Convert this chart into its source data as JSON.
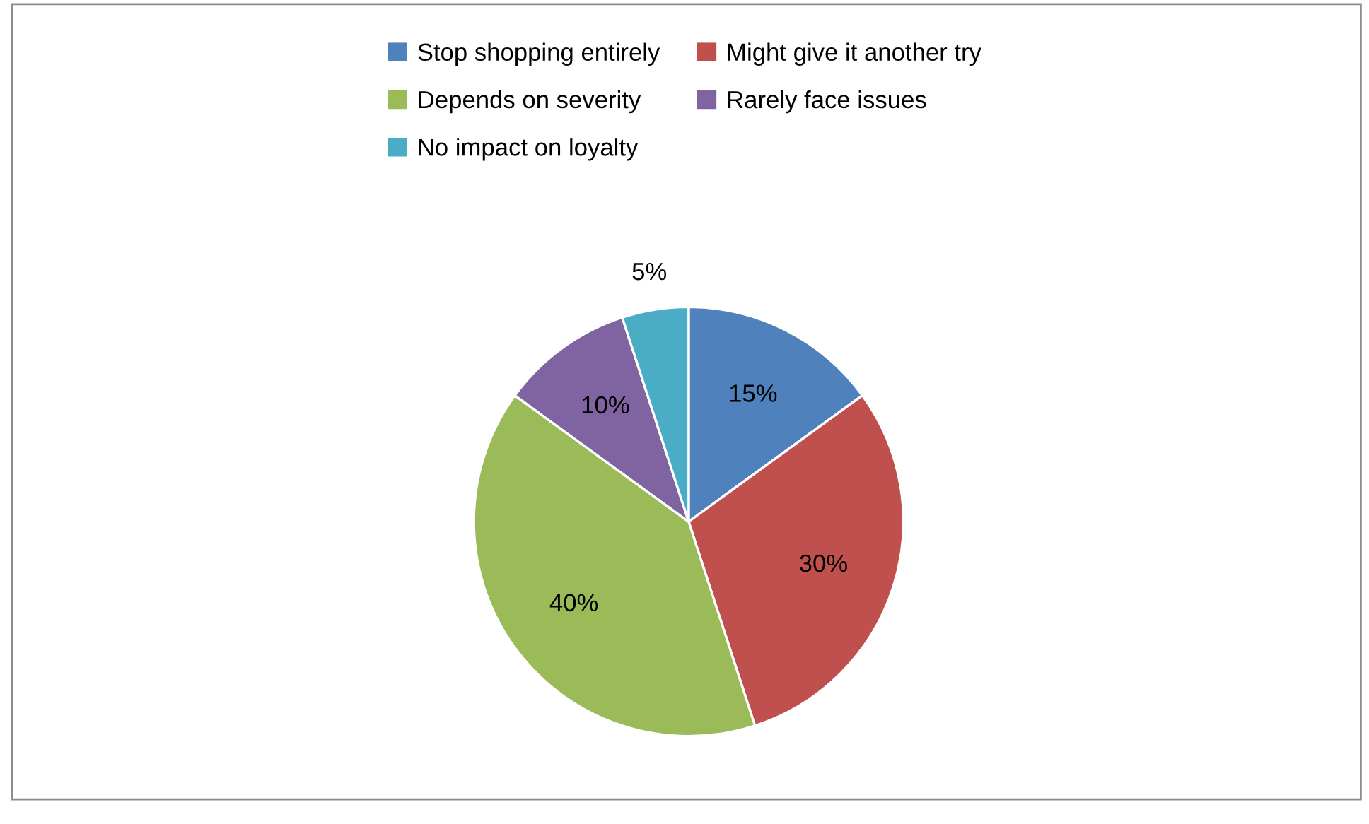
{
  "chart_data": {
    "type": "pie",
    "categories": [
      "Stop shopping entirely",
      "Might give it another try",
      "Depends on severity",
      "Rarely face issues",
      "No impact on loyalty"
    ],
    "values": [
      15,
      30,
      40,
      10,
      5
    ],
    "value_labels": [
      "15%",
      "30%",
      "40%",
      "10%",
      "5%"
    ],
    "colors": [
      "#4f81bd",
      "#c0504d",
      "#9bbb59",
      "#8064a2",
      "#4bacc6"
    ],
    "legend": "top"
  }
}
